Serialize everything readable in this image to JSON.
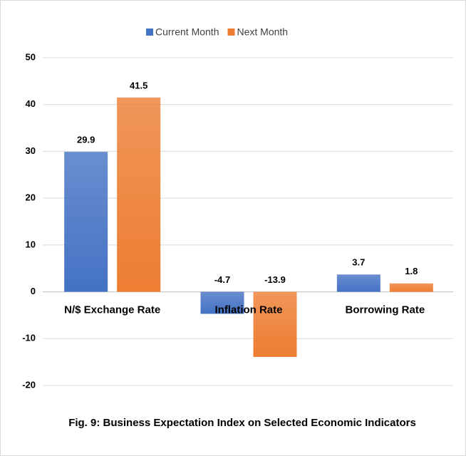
{
  "chart_data": {
    "type": "bar",
    "title": "Fig. 9: Business Expectation Index on Selected Economic Indicators",
    "categories": [
      "N/$ Exchange Rate",
      "Inflation Rate",
      "Borrowing Rate"
    ],
    "series": [
      {
        "name": "Current Month",
        "color": "#4472c4",
        "values": [
          29.9,
          -4.7,
          3.7
        ]
      },
      {
        "name": "Next Month",
        "color": "#ed7d31",
        "values": [
          41.5,
          -13.9,
          1.8
        ]
      }
    ],
    "ylim": [
      -20,
      50
    ],
    "yticks": [
      -20,
      -10,
      0,
      10,
      20,
      30,
      40,
      50
    ],
    "grid": true,
    "legend": "top"
  }
}
